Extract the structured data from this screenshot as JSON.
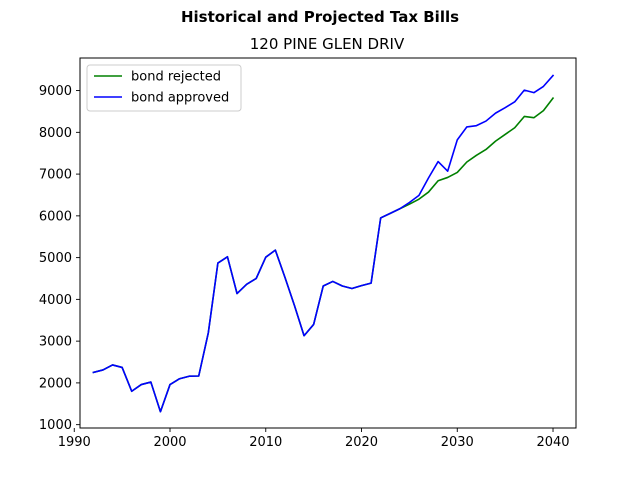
{
  "chart_data": {
    "type": "line",
    "title": "Historical and Projected Tax Bills",
    "subtitle": "120 PINE GLEN DRIV",
    "xlabel": "",
    "ylabel": "",
    "xlim": [
      1990.6,
      2042.4
    ],
    "ylim": [
      920,
      9780
    ],
    "xticks": [
      1990,
      2000,
      2010,
      2020,
      2030,
      2040
    ],
    "yticks": [
      1000,
      2000,
      3000,
      4000,
      5000,
      6000,
      7000,
      8000,
      9000
    ],
    "grid": false,
    "legend": "top-left",
    "series": [
      {
        "name": "bond rejected",
        "color": "#008000",
        "x": [
          1992,
          1993,
          1994,
          1995,
          1996,
          1997,
          1998,
          1999,
          2000,
          2001,
          2002,
          2003,
          2004,
          2005,
          2006,
          2007,
          2008,
          2009,
          2010,
          2011,
          2012,
          2013,
          2014,
          2015,
          2016,
          2017,
          2018,
          2019,
          2020,
          2021,
          2022,
          2023,
          2024,
          2025,
          2026,
          2027,
          2028,
          2029,
          2030,
          2031,
          2032,
          2033,
          2034,
          2035,
          2036,
          2037,
          2038,
          2039,
          2040
        ],
        "values": [
          2250,
          2310,
          2430,
          2370,
          1800,
          1960,
          2020,
          1310,
          1960,
          2100,
          2160,
          2165,
          3200,
          4870,
          5020,
          4140,
          4360,
          4500,
          5010,
          5180,
          4530,
          3850,
          3130,
          3400,
          4320,
          4430,
          4320,
          4260,
          4330,
          4390,
          5950,
          6060,
          6170,
          6280,
          6400,
          6570,
          6840,
          6920,
          7040,
          7290,
          7450,
          7590,
          7790,
          7950,
          8110,
          8380,
          8350,
          8520,
          8820
        ]
      },
      {
        "name": "bond approved",
        "color": "#0000ff",
        "x": [
          1992,
          1993,
          1994,
          1995,
          1996,
          1997,
          1998,
          1999,
          2000,
          2001,
          2002,
          2003,
          2004,
          2005,
          2006,
          2007,
          2008,
          2009,
          2010,
          2011,
          2012,
          2013,
          2014,
          2015,
          2016,
          2017,
          2018,
          2019,
          2020,
          2021,
          2022,
          2023,
          2024,
          2025,
          2026,
          2027,
          2028,
          2029,
          2030,
          2031,
          2032,
          2033,
          2034,
          2035,
          2036,
          2037,
          2038,
          2039,
          2040
        ],
        "values": [
          2250,
          2310,
          2430,
          2370,
          1800,
          1960,
          2020,
          1310,
          1960,
          2100,
          2160,
          2165,
          3200,
          4870,
          5020,
          4140,
          4360,
          4500,
          5010,
          5180,
          4530,
          3850,
          3130,
          3400,
          4320,
          4430,
          4320,
          4260,
          4330,
          4390,
          5950,
          6060,
          6170,
          6320,
          6490,
          6910,
          7300,
          7070,
          7820,
          8130,
          8160,
          8270,
          8460,
          8590,
          8730,
          9010,
          8950,
          9100,
          9360
        ]
      }
    ]
  }
}
